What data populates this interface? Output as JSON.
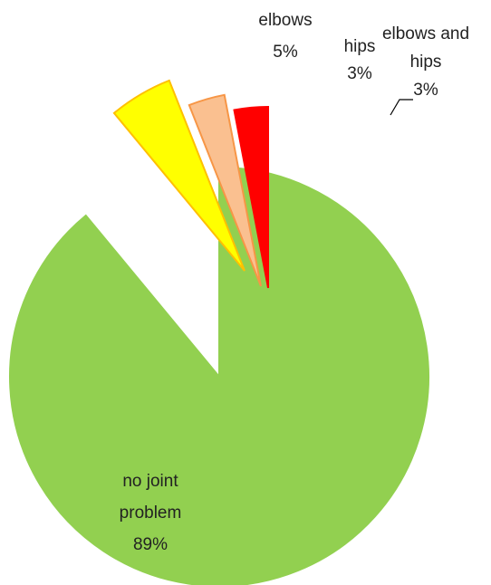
{
  "chart_data": {
    "type": "pie",
    "categories": [
      "no joint problem",
      "elbows",
      "hips",
      "elbows and hips"
    ],
    "values": [
      89,
      5,
      3,
      3
    ],
    "labels": [
      [
        "no joint",
        "problem",
        "89%"
      ],
      [
        "elbows",
        "5%"
      ],
      [
        "hips",
        "3%"
      ],
      [
        "elbows and",
        "hips",
        "3%"
      ]
    ],
    "colors": [
      "#92d050",
      "#ffff00",
      "#fac090",
      "#ff0000"
    ],
    "border_colors": [
      "#92d050",
      "#ffc000",
      "#f79646",
      "#ff0000"
    ],
    "exploded": [
      false,
      true,
      true,
      true
    ],
    "start_angle_deg": 0,
    "direction": "clockwise",
    "legend": "none",
    "title": ""
  }
}
